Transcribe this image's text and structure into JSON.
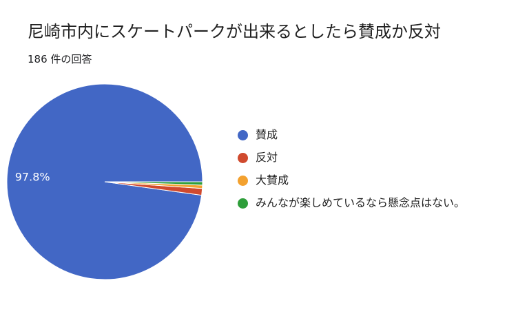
{
  "chart_data": {
    "type": "pie",
    "title": "尼崎市内にスケートパークが出来るとしたら賛成か反対",
    "subtitle": "186 件の回答",
    "categories": [
      "賛成",
      "反対",
      "大賛成",
      "みんなが楽しめているなら懸念点はない。"
    ],
    "values": [
      97.8,
      1.1,
      0.55,
      0.55
    ],
    "value_unit": "%",
    "colors": [
      "#4267c5",
      "#d04a2e",
      "#f3a12f",
      "#2e9e3a"
    ],
    "data_labels": [
      {
        "category": "賛成",
        "text": "97.8%"
      }
    ],
    "legend_position": "right",
    "start_angle_deg": 90,
    "direction": "counterclockwise"
  }
}
